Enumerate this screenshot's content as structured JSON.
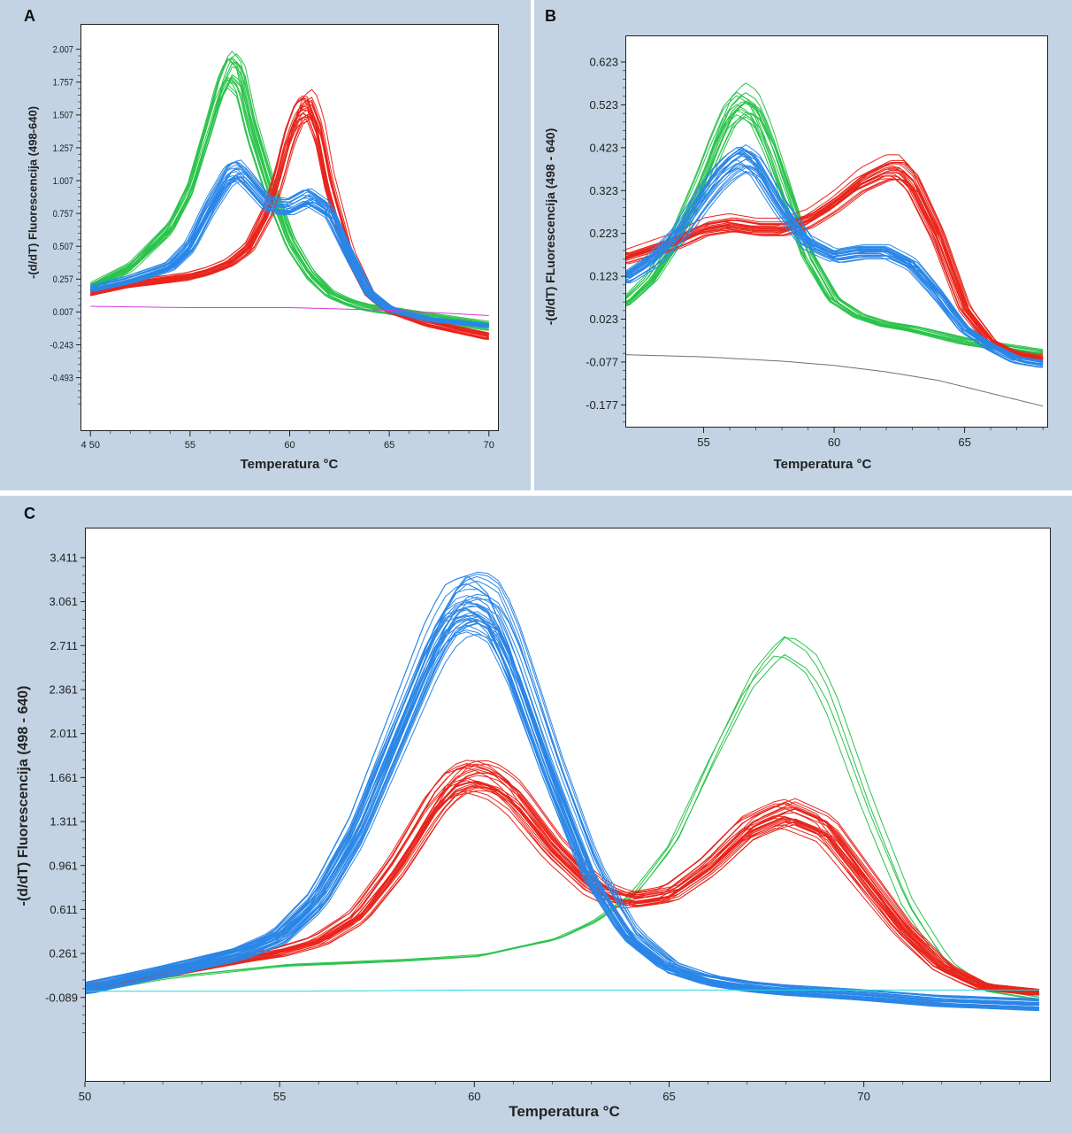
{
  "chart_data": [
    {
      "panel": "A",
      "type": "line",
      "xlabel": "Temperatura °C",
      "ylabel": "-(d/dT) Fluorescencija (498-640)",
      "xlim": [
        49.5,
        70.5
      ],
      "ylim": [
        -0.9,
        2.2
      ],
      "x_ticks": [
        50,
        55,
        60,
        65,
        70
      ],
      "x_tick_labels": [
        "4 50",
        "55",
        "60",
        "65",
        "70"
      ],
      "y_ticks": [
        2.007,
        1.757,
        1.507,
        1.257,
        1.007,
        0.757,
        0.507,
        0.257,
        0.007,
        -0.243,
        -0.493
      ],
      "y_tick_labels": [
        "2.007",
        "1.757",
        "1.507",
        "1.257",
        "1.007",
        "0.757",
        "0.507",
        "0.257",
        "0.007",
        "-0.243",
        "-0.493"
      ],
      "series": [
        {
          "color": "#2bc34b",
          "curves": 18,
          "x": [
            50,
            52,
            54,
            55,
            56,
            56.5,
            57,
            57.5,
            58,
            59,
            60,
            61,
            62,
            63,
            64,
            65,
            67,
            70
          ],
          "y": [
            0.2,
            0.35,
            0.65,
            0.95,
            1.45,
            1.72,
            1.88,
            1.8,
            1.45,
            0.95,
            0.55,
            0.3,
            0.15,
            0.08,
            0.04,
            0.02,
            -0.03,
            -0.1
          ]
        },
        {
          "color": "#e8251c",
          "curves": 22,
          "x": [
            50,
            52,
            54,
            55,
            56,
            57,
            58,
            59,
            59.5,
            60,
            60.5,
            61,
            61.5,
            62,
            63,
            64,
            65,
            67,
            70
          ],
          "y": [
            0.15,
            0.22,
            0.26,
            0.28,
            0.32,
            0.38,
            0.5,
            0.8,
            1.05,
            1.35,
            1.55,
            1.6,
            1.4,
            1.0,
            0.45,
            0.15,
            0.03,
            -0.08,
            -0.18
          ]
        },
        {
          "color": "#2a86e6",
          "curves": 24,
          "x": [
            50,
            52,
            54,
            55,
            56,
            57,
            57.5,
            58,
            59,
            60,
            61,
            62,
            63,
            64,
            65,
            67,
            70
          ],
          "y": [
            0.18,
            0.25,
            0.35,
            0.5,
            0.8,
            1.05,
            1.08,
            1.0,
            0.82,
            0.8,
            0.88,
            0.78,
            0.45,
            0.15,
            0.03,
            -0.05,
            -0.1
          ]
        },
        {
          "color": "#d63ad6",
          "curves": 1,
          "x": [
            50,
            55,
            60,
            65,
            70
          ],
          "y": [
            0.05,
            0.04,
            0.04,
            0.02,
            -0.02
          ]
        }
      ]
    },
    {
      "panel": "B",
      "type": "line",
      "xlabel": "Temperatura °C",
      "ylabel": "-(d/dT) FLuorescencija (498 - 640)",
      "xlim": [
        52,
        68.2
      ],
      "ylim": [
        -0.23,
        0.685
      ],
      "x_ticks": [
        55,
        60,
        65
      ],
      "x_tick_labels": [
        "55",
        "60",
        "65"
      ],
      "y_ticks": [
        0.623,
        0.523,
        0.423,
        0.323,
        0.223,
        0.123,
        0.023,
        -0.077,
        -0.177
      ],
      "y_tick_labels": [
        "0.623",
        "0.523",
        "0.423",
        "0.323",
        "0.223",
        "0.123",
        "0.023",
        "-0.077",
        "-0.177"
      ],
      "series": [
        {
          "color": "#2bc34b",
          "curves": 18,
          "x": [
            52,
            53,
            54,
            55,
            55.5,
            56,
            56.5,
            57,
            57.5,
            58,
            59,
            60,
            61,
            62,
            63,
            65,
            67,
            68
          ],
          "y": [
            0.06,
            0.12,
            0.22,
            0.36,
            0.44,
            0.51,
            0.54,
            0.52,
            0.45,
            0.36,
            0.18,
            0.07,
            0.03,
            0.01,
            0.0,
            -0.03,
            -0.05,
            -0.06
          ]
        },
        {
          "color": "#e8251c",
          "curves": 22,
          "x": [
            52,
            53,
            54,
            55,
            56,
            57,
            58,
            59,
            60,
            61,
            62,
            62.5,
            63,
            64,
            65,
            66,
            67,
            68
          ],
          "y": [
            0.17,
            0.19,
            0.21,
            0.24,
            0.25,
            0.24,
            0.24,
            0.26,
            0.3,
            0.35,
            0.38,
            0.38,
            0.35,
            0.22,
            0.05,
            -0.03,
            -0.06,
            -0.07
          ]
        },
        {
          "color": "#2a86e6",
          "curves": 24,
          "x": [
            52,
            53,
            54,
            55,
            55.5,
            56,
            56.5,
            57,
            57.5,
            58,
            59,
            60,
            61,
            62,
            63,
            64,
            65,
            66,
            67,
            68
          ],
          "y": [
            0.12,
            0.16,
            0.22,
            0.31,
            0.35,
            0.38,
            0.4,
            0.38,
            0.33,
            0.28,
            0.2,
            0.17,
            0.18,
            0.18,
            0.15,
            0.08,
            0.0,
            -0.04,
            -0.07,
            -0.08
          ]
        },
        {
          "color": "#707070",
          "curves": 1,
          "x": [
            52,
            55,
            58,
            60,
            62,
            64,
            66,
            68
          ],
          "y": [
            -0.06,
            -0.065,
            -0.075,
            -0.085,
            -0.1,
            -0.12,
            -0.15,
            -0.18
          ]
        }
      ]
    },
    {
      "panel": "C",
      "type": "line",
      "xlabel": "Temperatura °C",
      "ylabel": "-(d/dT) Fluorescencija (498 - 640)",
      "xlim": [
        50,
        74.8
      ],
      "ylim": [
        -0.76,
        3.65
      ],
      "x_ticks": [
        50,
        55,
        60,
        65,
        70
      ],
      "x_tick_labels": [
        "50",
        "55",
        "60",
        "65",
        "70"
      ],
      "y_ticks": [
        3.411,
        3.061,
        2.711,
        2.361,
        2.011,
        1.661,
        1.311,
        0.961,
        0.611,
        0.261,
        -0.089
      ],
      "y_tick_labels": [
        "3.411",
        "3.061",
        "2.711",
        "2.361",
        "2.011",
        "1.661",
        "1.311",
        "0.961",
        "0.611",
        "0.261",
        "-0.089"
      ],
      "series": [
        {
          "color": "#2bc34b",
          "curves": 4,
          "x": [
            50,
            52,
            55,
            58,
            60,
            62,
            63,
            64,
            65,
            66,
            67,
            67.8,
            68.5,
            69,
            70,
            71,
            72,
            73,
            74.5
          ],
          "y": [
            -0.03,
            0.08,
            0.18,
            0.22,
            0.26,
            0.4,
            0.55,
            0.78,
            1.2,
            1.9,
            2.55,
            2.85,
            2.7,
            2.4,
            1.5,
            0.7,
            0.2,
            -0.02,
            -0.1
          ]
        },
        {
          "color": "#e8251c",
          "curves": 26,
          "x": [
            50,
            52,
            54,
            55,
            56,
            57,
            58,
            59,
            59.5,
            60,
            60.5,
            61,
            62,
            63,
            63.5,
            64,
            65,
            66,
            67,
            68,
            69,
            70,
            71,
            72,
            73,
            74.5
          ],
          "y": [
            -0.02,
            0.1,
            0.22,
            0.27,
            0.36,
            0.55,
            0.95,
            1.45,
            1.62,
            1.67,
            1.62,
            1.5,
            1.1,
            0.8,
            0.72,
            0.68,
            0.73,
            0.95,
            1.25,
            1.38,
            1.25,
            0.85,
            0.45,
            0.15,
            0.0,
            -0.05
          ]
        },
        {
          "color": "#2a86e6",
          "curves": 36,
          "x": [
            50,
            52,
            54,
            55,
            56,
            57,
            58,
            59,
            59.5,
            60,
            60.5,
            61,
            62,
            63,
            64,
            65,
            66,
            67,
            68,
            70,
            72,
            74.5
          ],
          "y": [
            -0.02,
            0.12,
            0.27,
            0.4,
            0.7,
            1.25,
            2.0,
            2.75,
            3.0,
            3.05,
            2.95,
            2.6,
            1.7,
            0.9,
            0.4,
            0.15,
            0.05,
            0.0,
            -0.03,
            -0.07,
            -0.12,
            -0.15
          ]
        },
        {
          "color": "#27d6d9",
          "curves": 1,
          "x": [
            50,
            55,
            60,
            65,
            70,
            74.5
          ],
          "y": [
            -0.04,
            -0.04,
            -0.03,
            -0.03,
            -0.03,
            -0.03
          ]
        }
      ]
    }
  ]
}
